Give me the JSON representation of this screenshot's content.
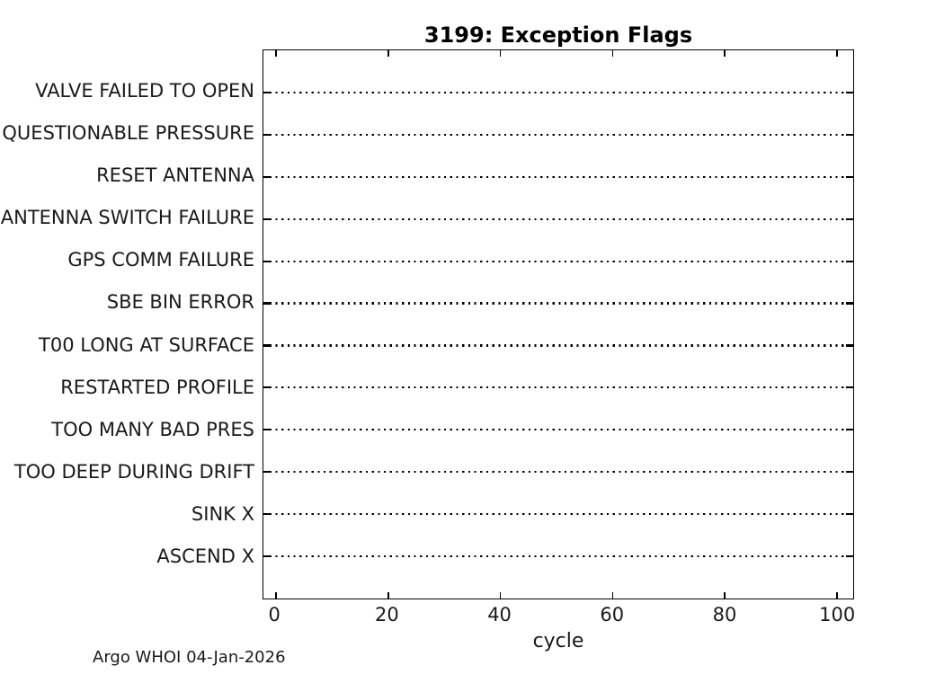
{
  "figure": {
    "title": "3199: Exception Flags",
    "xlabel": "cycle",
    "footer": "Argo WHOI 04-Jan-2026",
    "colors": {
      "background": "#ffffff",
      "axis_line": "#000000",
      "text": "#1a1a1a",
      "gridline": "#000000"
    }
  },
  "chart_data": {
    "type": "scatter",
    "title": "3199: Exception Flags",
    "xlabel": "cycle",
    "ylabel": "",
    "categories": [
      "VALVE FAILED TO OPEN",
      "QUESTIONABLE PRESSURE",
      "RESET ANTENNA",
      "ANTENNA SWITCH FAILURE",
      "GPS COMM FAILURE",
      "SBE BIN ERROR",
      "T00 LONG AT SURFACE",
      "RESTARTED PROFILE",
      "TOO MANY BAD PRES",
      "TOO DEEP DURING DRIFT",
      "SINK X",
      "ASCEND X"
    ],
    "series": [],
    "points_plotted": "none - plot area is empty, no exception flag markers on any row",
    "x_ticks": [
      0,
      20,
      40,
      60,
      80,
      100
    ],
    "xlim": [
      -2.1,
      103
    ],
    "grid": "black dotted horizontal line across full width at every category row",
    "axis_box": "full box with inward tick marks on top, bottom, left and right edges",
    "legend": "none",
    "annotation": "Argo WHOI 04-Jan-2026"
  }
}
